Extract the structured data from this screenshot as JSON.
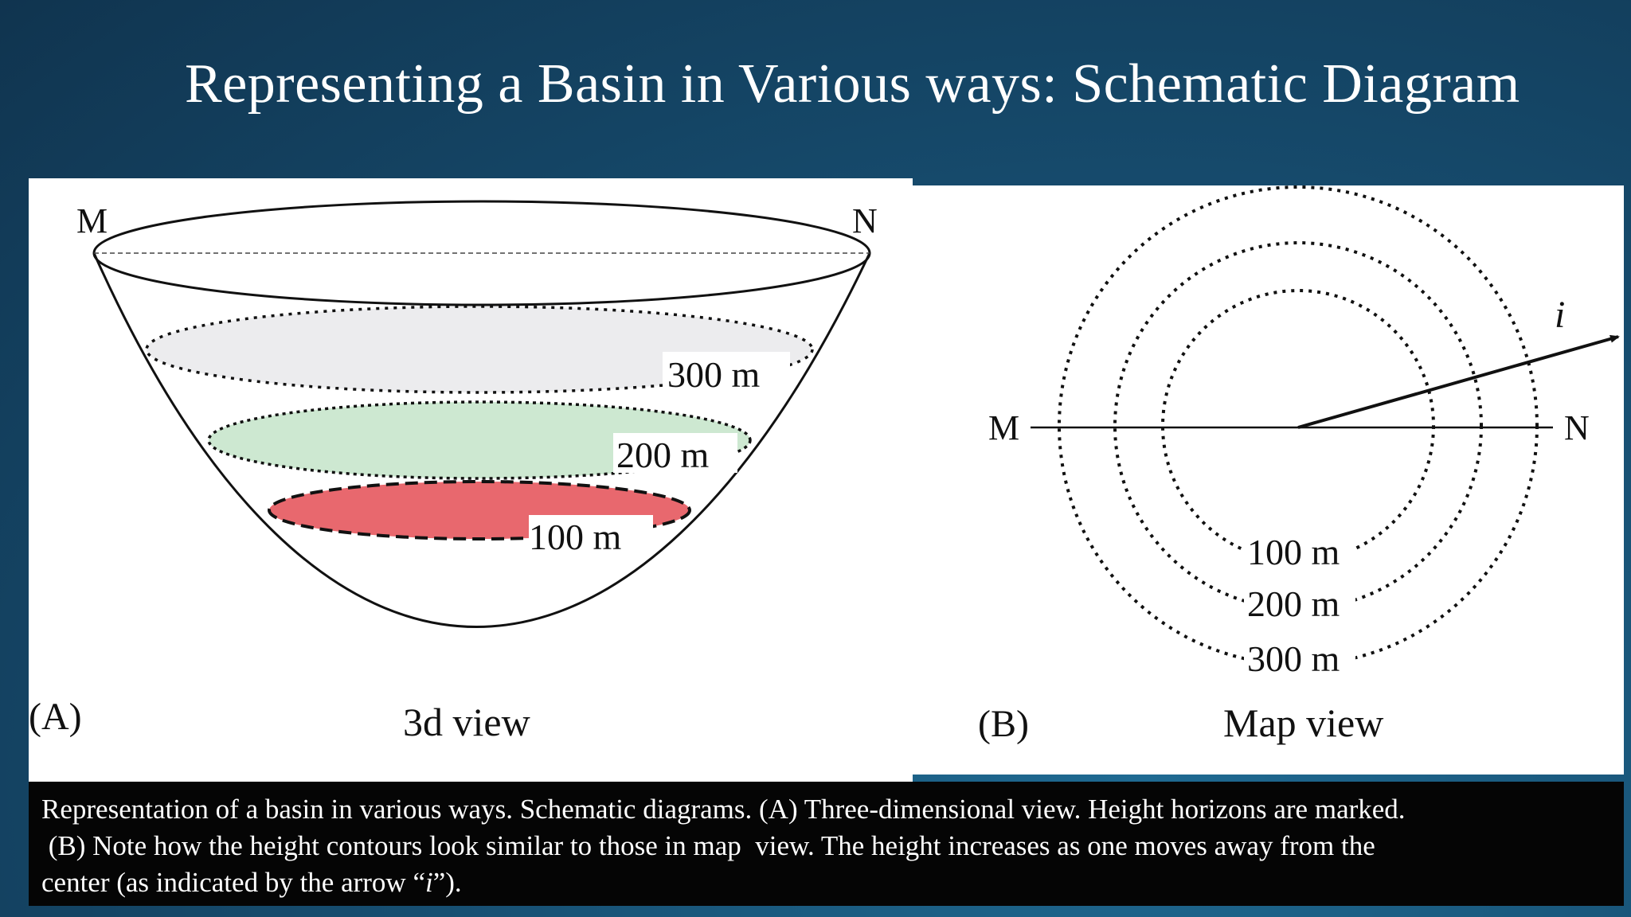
{
  "slide": {
    "title": "Representing a Basin in Various ways: Schematic Diagram"
  },
  "panel_a": {
    "label_m": "M",
    "label_n": "N",
    "contour_300": "300 m",
    "contour_200": "200 m",
    "contour_100": "100 m",
    "panel_letter": "(A)",
    "view_name": "3d view",
    "colors": {
      "fill_300": "#ececee",
      "fill_200": "#cde8d1",
      "fill_100": "#e8686e"
    }
  },
  "panel_b": {
    "label_m": "M",
    "label_n": "N",
    "arrow_label": "i",
    "contour_100": "100 m",
    "contour_200": "200 m",
    "contour_300": "300 m",
    "panel_letter": "(B)",
    "view_name": "Map view"
  },
  "caption": {
    "line1": "Representation of a basin in various ways. Schematic diagrams. (A) Three-dimensional view. Height horizons are marked.",
    "line2": " (B) Note how the height contours look similar to those in map  view. The height increases as one moves away from the",
    "line3_pre": "center (as indicated by the arrow “",
    "line3_i": "i",
    "line3_post": "”)."
  }
}
